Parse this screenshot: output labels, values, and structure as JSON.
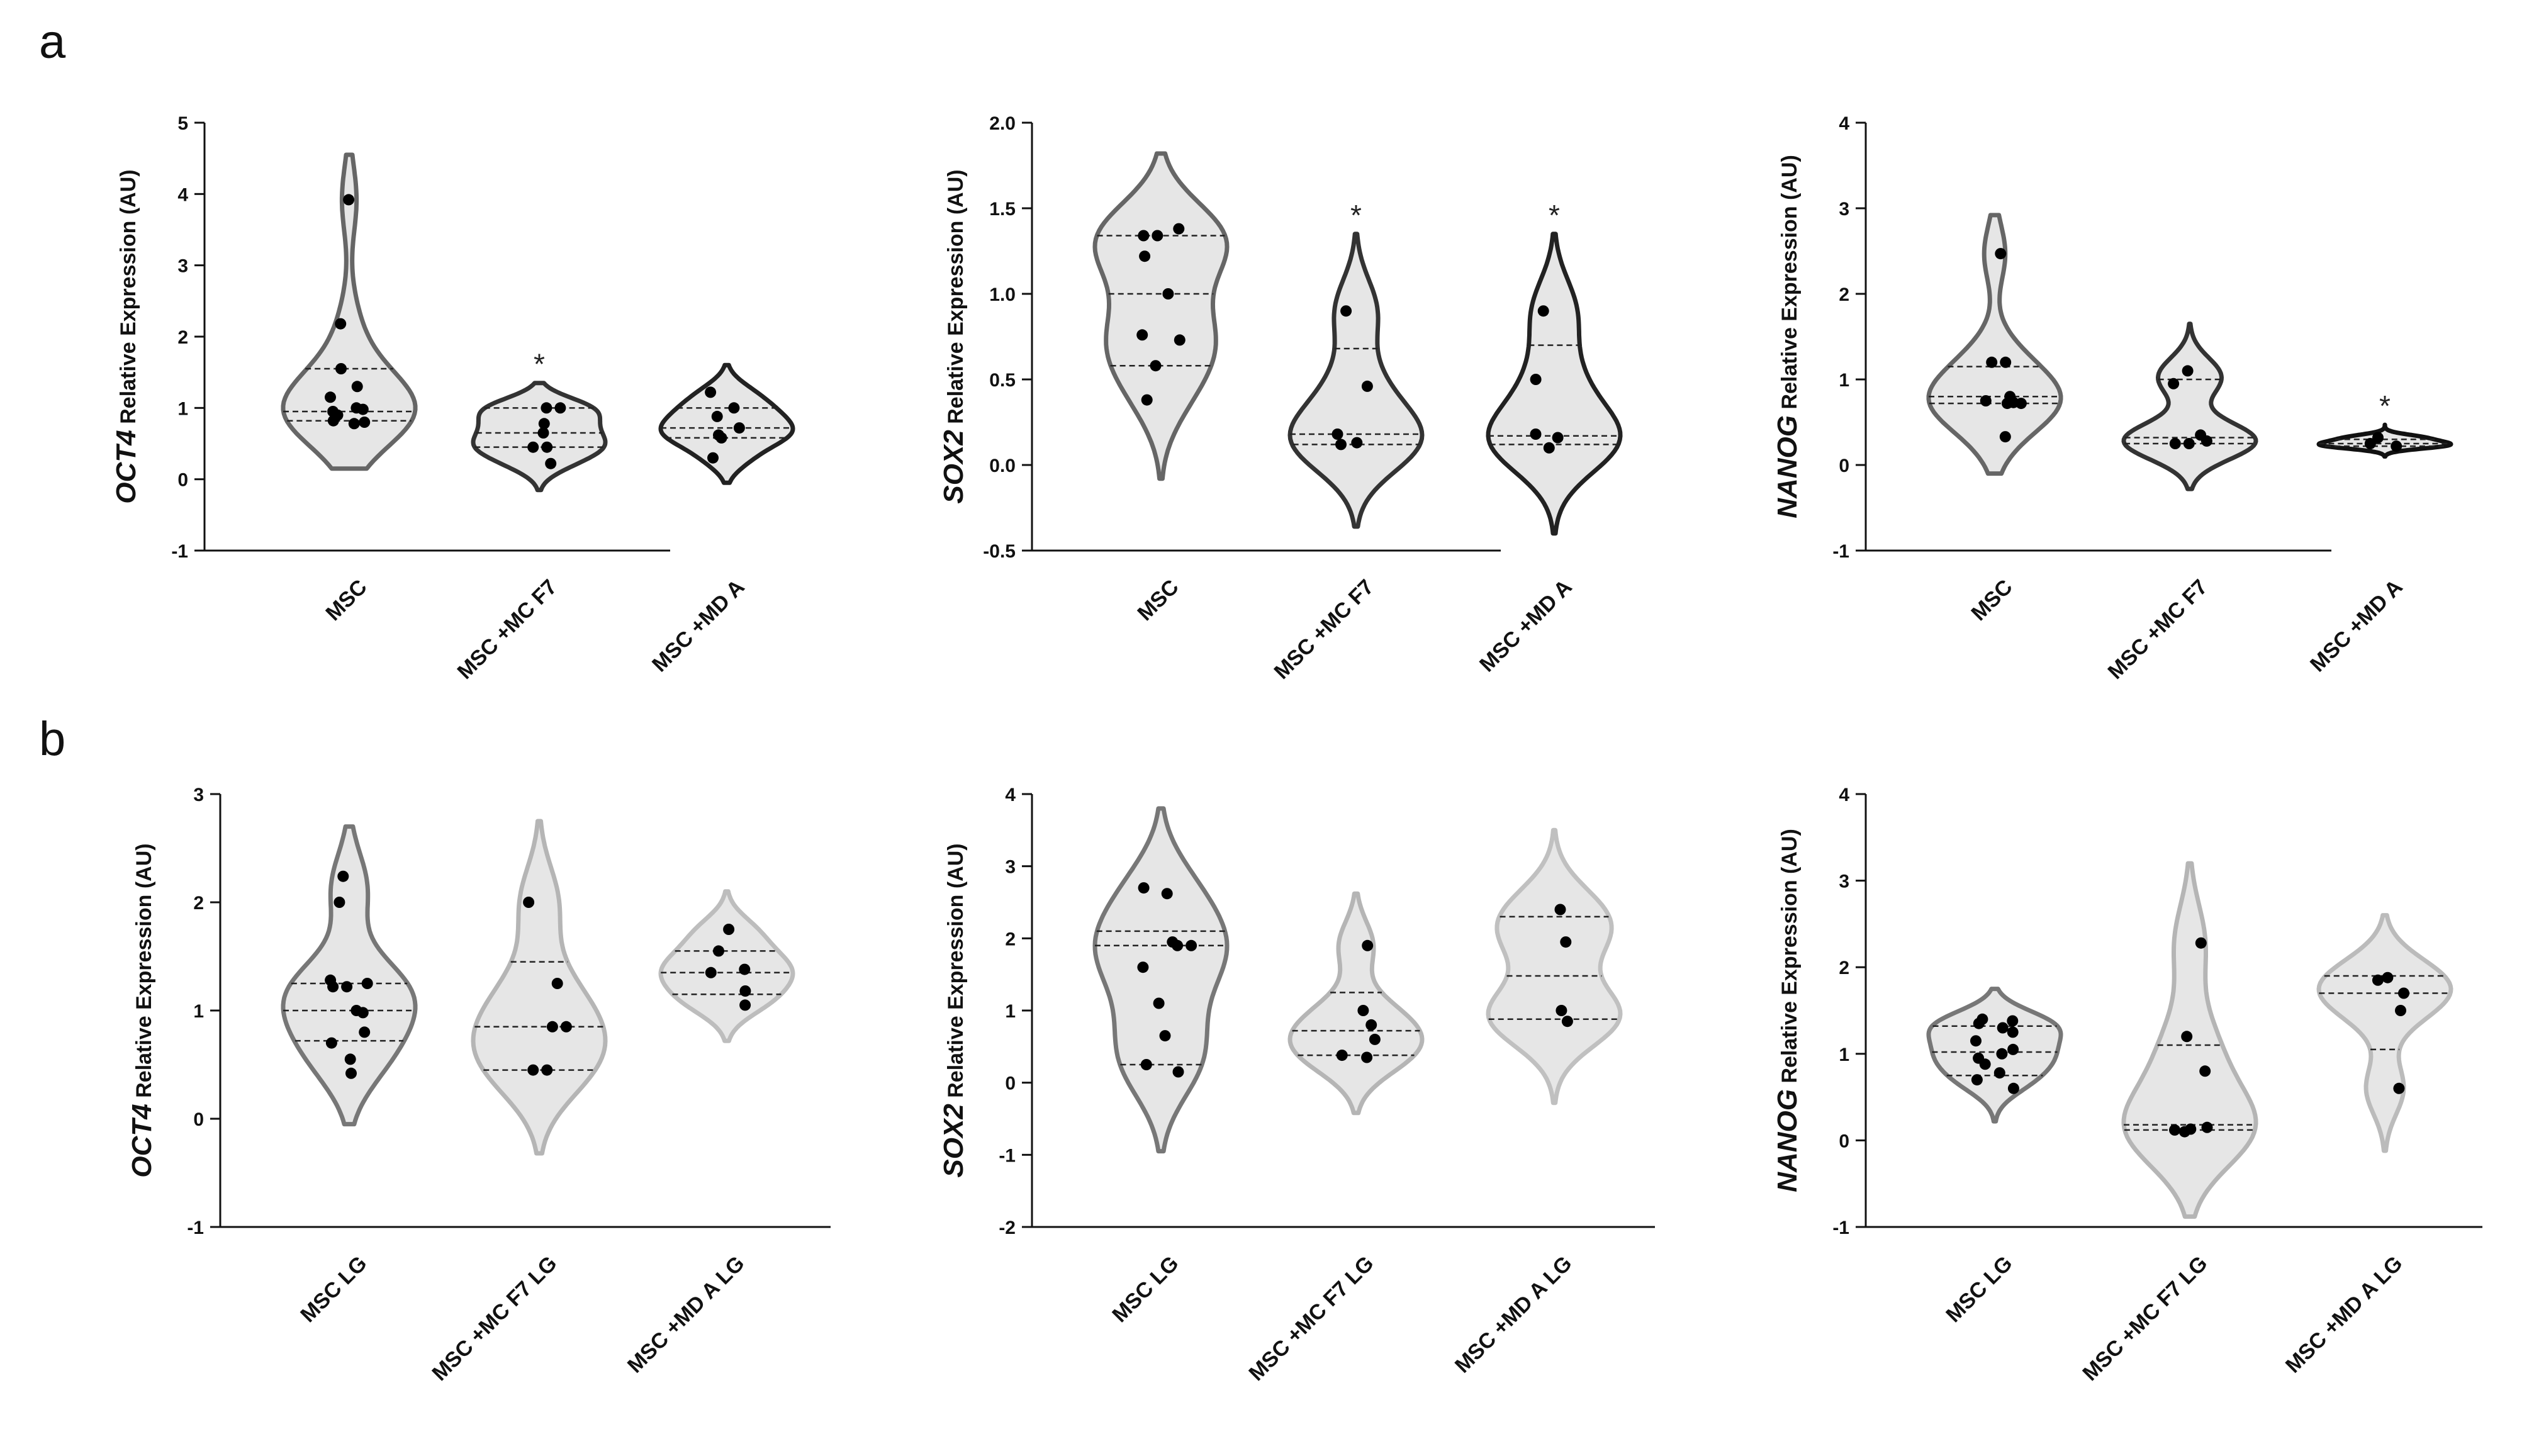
{
  "panel_labels": [
    "a",
    "b"
  ],
  "chart_data": [
    {
      "id": "a1",
      "type": "violin",
      "panel": "a",
      "ylabel_gene": "OCT4",
      "ylabel_rest": " Relative Expression (AU)",
      "ylim": [
        -1,
        5
      ],
      "yticks": [
        "-1",
        "0",
        "1",
        "2",
        "3",
        "4",
        "5"
      ],
      "categories": [
        "MSC",
        "MSC +MC F7",
        "MSC +MD A"
      ],
      "series": [
        {
          "name": "MSC",
          "color": "#666666",
          "range": [
            0.15,
            4.55
          ],
          "quartiles": [
            0.82,
            0.95,
            1.55
          ],
          "points": [
            0.95,
            3.92,
            2.18,
            1.55,
            1.3,
            1.15,
            1.0,
            0.98,
            0.9,
            0.82,
            0.8,
            0.78
          ],
          "star": ""
        },
        {
          "name": "MSC +MC F7",
          "color": "#333333",
          "range": [
            -0.15,
            1.35
          ],
          "quartiles": [
            0.45,
            0.65,
            1.0
          ],
          "points": [
            1.0,
            1.0,
            0.78,
            0.65,
            0.45,
            0.45,
            0.22
          ],
          "star": "*"
        },
        {
          "name": "MSC +MD A",
          "color": "#222222",
          "range": [
            -0.05,
            1.6
          ],
          "quartiles": [
            0.58,
            0.72,
            1.0
          ],
          "points": [
            1.22,
            1.0,
            0.88,
            0.72,
            0.62,
            0.58,
            0.3
          ],
          "star": ""
        }
      ]
    },
    {
      "id": "a2",
      "type": "violin",
      "panel": "a",
      "ylabel_gene": "SOX2",
      "ylabel_rest": " Relative Expression (AU)",
      "ylim": [
        -0.5,
        2.0
      ],
      "yticks": [
        "-0.5",
        "0.0",
        "0.5",
        "1.0",
        "1.5",
        "2.0"
      ],
      "categories": [
        "MSC",
        "MSC +MC F7",
        "MSC +MD A"
      ],
      "series": [
        {
          "name": "MSC",
          "color": "#666666",
          "range": [
            -0.08,
            1.82
          ],
          "quartiles": [
            0.58,
            1.0,
            1.34
          ],
          "points": [
            1.38,
            1.34,
            1.34,
            1.22,
            1.0,
            0.76,
            0.73,
            0.58,
            0.38
          ],
          "star": ""
        },
        {
          "name": "MSC +MC F7",
          "color": "#333333",
          "range": [
            -0.36,
            1.35
          ],
          "quartiles": [
            0.12,
            0.18,
            0.68
          ],
          "points": [
            0.9,
            0.46,
            0.18,
            0.13,
            0.12
          ],
          "star": "*"
        },
        {
          "name": "MSC +MD A",
          "color": "#222222",
          "range": [
            -0.4,
            1.35
          ],
          "quartiles": [
            0.12,
            0.17,
            0.7
          ],
          "points": [
            0.9,
            0.5,
            0.18,
            0.16,
            0.1
          ],
          "star": "*"
        }
      ]
    },
    {
      "id": "a3",
      "type": "violin",
      "panel": "a",
      "ylabel_gene": "NANOG",
      "ylabel_rest": " Relative Expression (AU)",
      "ylim": [
        -1,
        4
      ],
      "yticks": [
        "-1",
        "0",
        "1",
        "2",
        "3",
        "4"
      ],
      "categories": [
        "MSC",
        "MSC +MC F7",
        "MSC +MD A"
      ],
      "series": [
        {
          "name": "MSC",
          "color": "#666666",
          "range": [
            -0.1,
            2.92
          ],
          "quartiles": [
            0.72,
            0.8,
            1.15
          ],
          "points": [
            2.47,
            1.2,
            1.2,
            0.8,
            0.75,
            0.73,
            0.72,
            0.72,
            0.33
          ],
          "star": ""
        },
        {
          "name": "MSC +MC F7",
          "color": "#333333",
          "range": [
            -0.28,
            1.65
          ],
          "quartiles": [
            0.25,
            0.32,
            1.0
          ],
          "points": [
            1.1,
            0.95,
            0.35,
            0.28,
            0.25,
            0.25
          ],
          "star": ""
        },
        {
          "name": "MSC +MD A",
          "color": "#111111",
          "range": [
            0.1,
            0.47
          ],
          "quartiles": [
            0.22,
            0.25,
            0.3
          ],
          "points": [
            0.32,
            0.25,
            0.22
          ],
          "star": "*"
        }
      ]
    },
    {
      "id": "b1",
      "type": "violin",
      "panel": "b",
      "ylabel_gene": "OCT4",
      "ylabel_rest": " Relative Expression (AU)",
      "ylim": [
        -1,
        3
      ],
      "yticks": [
        "-1",
        "0",
        "1",
        "2",
        "3"
      ],
      "categories": [
        "MSC  LG",
        "MSC +MC F7 LG",
        "MSC +MD A LG"
      ],
      "series": [
        {
          "name": "MSC  LG",
          "color": "#777777",
          "range": [
            -0.05,
            2.7
          ],
          "quartiles": [
            0.72,
            1.0,
            1.25
          ],
          "points": [
            2.24,
            2.0,
            1.28,
            1.25,
            1.22,
            1.22,
            1.0,
            0.98,
            0.8,
            0.7,
            0.55,
            0.42
          ],
          "star": ""
        },
        {
          "name": "MSC +MC F7 LG",
          "color": "#b5b5b5",
          "range": [
            -0.32,
            2.75
          ],
          "quartiles": [
            0.45,
            0.85,
            1.45
          ],
          "points": [
            2.0,
            1.25,
            0.85,
            0.85,
            0.45,
            0.45
          ],
          "star": ""
        },
        {
          "name": "MSC +MD A LG",
          "color": "#bdbdbd",
          "range": [
            0.72,
            2.1
          ],
          "quartiles": [
            1.15,
            1.35,
            1.55
          ],
          "points": [
            1.75,
            1.55,
            1.38,
            1.35,
            1.18,
            1.05
          ],
          "star": ""
        }
      ]
    },
    {
      "id": "b2",
      "type": "violin",
      "panel": "b",
      "ylabel_gene": "SOX2",
      "ylabel_rest": " Relative Expression (AU)",
      "ylim": [
        -2,
        4
      ],
      "yticks": [
        "-2",
        "-1",
        "0",
        "1",
        "2",
        "3",
        "4"
      ],
      "categories": [
        "MSC  LG",
        "MSC +MC F7 LG",
        "MSC +MD A LG"
      ],
      "series": [
        {
          "name": "MSC  LG",
          "color": "#777777",
          "range": [
            -0.95,
            3.8
          ],
          "quartiles": [
            0.25,
            1.9,
            2.1
          ],
          "points": [
            2.7,
            2.62,
            1.95,
            1.9,
            1.9,
            1.6,
            1.1,
            0.65,
            0.25,
            0.15
          ],
          "star": ""
        },
        {
          "name": "MSC +MC F7 LG",
          "color": "#b5b5b5",
          "range": [
            -0.42,
            2.62
          ],
          "quartiles": [
            0.38,
            0.72,
            1.25
          ],
          "points": [
            1.9,
            1.0,
            0.8,
            0.6,
            0.38,
            0.35
          ],
          "star": ""
        },
        {
          "name": "MSC +MD A LG",
          "color": "#c0c0c0",
          "range": [
            -0.28,
            3.5
          ],
          "quartiles": [
            0.88,
            1.48,
            2.3
          ],
          "points": [
            2.4,
            1.95,
            1.0,
            0.85
          ],
          "star": ""
        }
      ]
    },
    {
      "id": "b3",
      "type": "violin",
      "panel": "b",
      "ylabel_gene": "NANOG",
      "ylabel_rest": " Relative Expression (AU)",
      "ylim": [
        -1,
        4
      ],
      "yticks": [
        "-1",
        "0",
        "1",
        "2",
        "3",
        "4"
      ],
      "categories": [
        "MSC  LG",
        "MSC +MC F7 LG",
        "MSC +MD A LG"
      ],
      "series": [
        {
          "name": "MSC  LG",
          "color": "#777777",
          "range": [
            0.22,
            1.75
          ],
          "quartiles": [
            0.75,
            1.02,
            1.32
          ],
          "points": [
            1.4,
            1.38,
            1.35,
            1.3,
            1.25,
            1.15,
            1.05,
            1.0,
            0.95,
            0.88,
            0.78,
            0.7,
            0.6
          ],
          "star": ""
        },
        {
          "name": "MSC +MC F7 LG",
          "color": "#b5b5b5",
          "range": [
            -0.88,
            3.2
          ],
          "quartiles": [
            0.12,
            0.18,
            1.1
          ],
          "points": [
            2.28,
            1.2,
            0.8,
            0.15,
            0.13,
            0.12,
            0.1
          ],
          "star": ""
        },
        {
          "name": "MSC +MD A LG",
          "color": "#bbbbbb",
          "range": [
            -0.12,
            2.6
          ],
          "quartiles": [
            1.05,
            1.7,
            1.9
          ],
          "points": [
            1.88,
            1.85,
            1.7,
            1.5,
            0.6
          ],
          "star": ""
        }
      ]
    }
  ]
}
